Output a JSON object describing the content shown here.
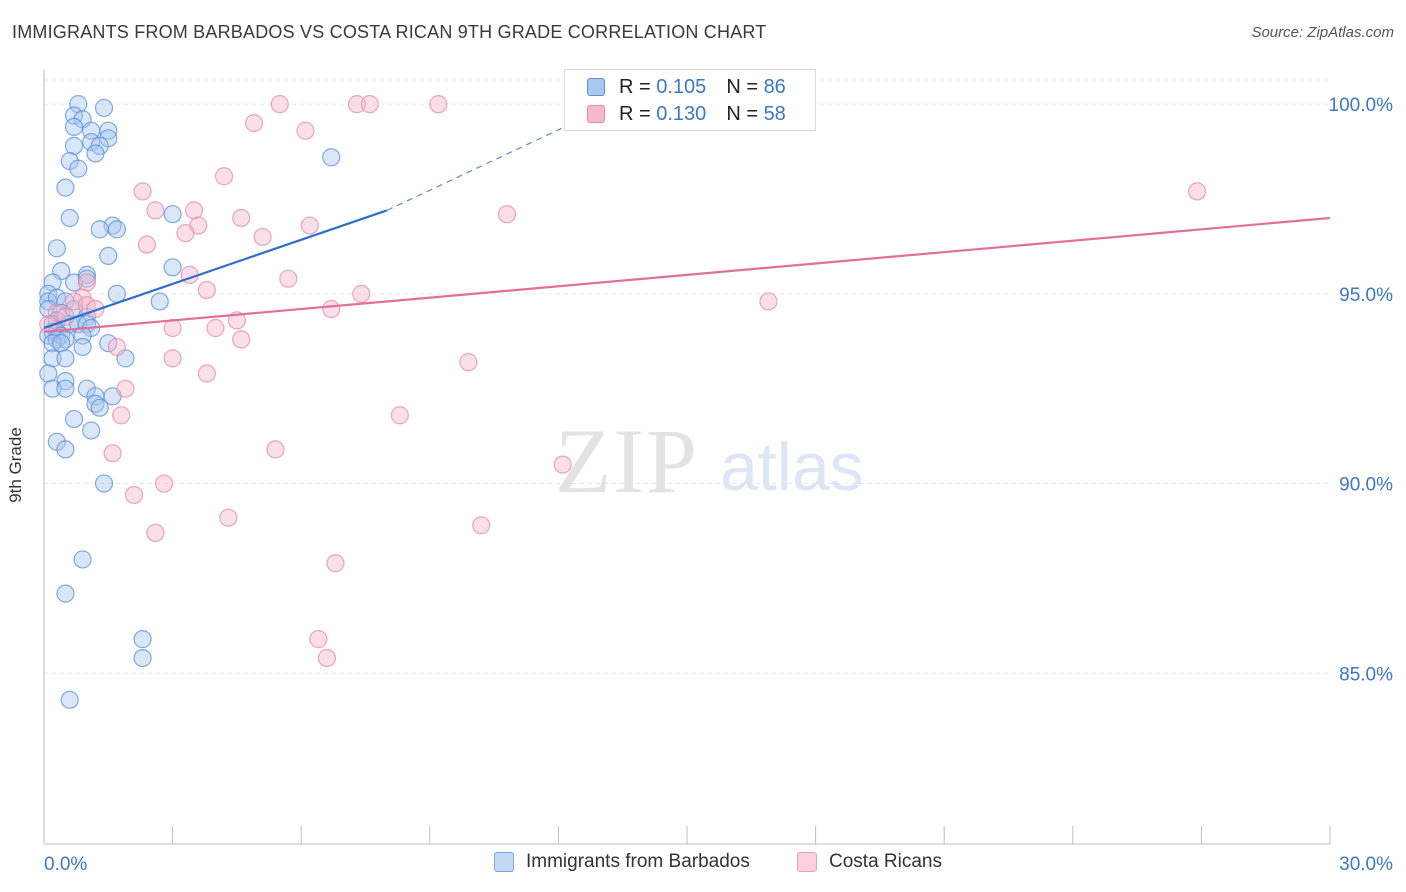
{
  "title": "IMMIGRANTS FROM BARBADOS VS COSTA RICAN 9TH GRADE CORRELATION CHART",
  "source": "Source: ZipAtlas.com",
  "watermark": {
    "zip": "ZIP",
    "atlas": "atlas"
  },
  "legend": {
    "r_label": "R =",
    "n_label": "N =",
    "series": [
      {
        "r": "0.105",
        "n": "86"
      },
      {
        "r": "0.130",
        "n": "58"
      }
    ]
  },
  "colors": {
    "blue_fill": "#a8c8f0",
    "blue_stroke": "#5b8fd6",
    "blue_line": "#2f6fcb",
    "pink_fill": "#f5b9cc",
    "pink_stroke": "#e58aa8",
    "pink_line": "#e0709a",
    "tick_text": "#3a78c9",
    "grid": "#e6e6e6"
  },
  "chart_data": {
    "type": "scatter",
    "title": "IMMIGRANTS FROM BARBADOS VS COSTA RICAN 9TH GRADE CORRELATION CHART",
    "xlabel": "",
    "ylabel": "9th Grade",
    "xlim": [
      0,
      30
    ],
    "ylim": [
      80.5,
      100.9
    ],
    "x_tick_labels": [
      {
        "value": 0,
        "label": "0.0%"
      },
      {
        "value": 30,
        "label": "30.0%"
      }
    ],
    "y_tick_labels": [
      {
        "value": 100,
        "label": "100.0%"
      },
      {
        "value": 95,
        "label": "95.0%"
      },
      {
        "value": 90,
        "label": "90.0%"
      },
      {
        "value": 85,
        "label": "85.0%"
      }
    ],
    "series": [
      {
        "name": "Immigrants from Barbados",
        "r": 0.105,
        "n": 86,
        "trend": {
          "x0": 0.0,
          "y0": 94.1,
          "x1": 8.0,
          "y1": 97.2,
          "dash_to_x": 12.9,
          "dash_to_y": 99.8
        },
        "points": [
          [
            0.8,
            100.0
          ],
          [
            1.4,
            99.9
          ],
          [
            0.7,
            99.7
          ],
          [
            0.9,
            99.6
          ],
          [
            0.7,
            99.4
          ],
          [
            1.1,
            99.3
          ],
          [
            1.5,
            99.3
          ],
          [
            1.5,
            99.1
          ],
          [
            1.1,
            99.0
          ],
          [
            1.3,
            98.9
          ],
          [
            0.7,
            98.9
          ],
          [
            1.2,
            98.7
          ],
          [
            0.6,
            98.5
          ],
          [
            0.8,
            98.3
          ],
          [
            6.7,
            98.6
          ],
          [
            0.5,
            97.8
          ],
          [
            0.6,
            97.0
          ],
          [
            3.0,
            97.1
          ],
          [
            1.6,
            96.8
          ],
          [
            1.7,
            96.7
          ],
          [
            1.3,
            96.7
          ],
          [
            0.3,
            96.2
          ],
          [
            1.5,
            96.0
          ],
          [
            0.4,
            95.6
          ],
          [
            1.0,
            95.5
          ],
          [
            3.0,
            95.7
          ],
          [
            0.2,
            95.3
          ],
          [
            0.7,
            95.3
          ],
          [
            1.0,
            95.4
          ],
          [
            1.7,
            95.0
          ],
          [
            0.1,
            95.0
          ],
          [
            0.1,
            94.8
          ],
          [
            0.3,
            94.9
          ],
          [
            0.5,
            94.8
          ],
          [
            0.1,
            94.6
          ],
          [
            0.4,
            94.5
          ],
          [
            0.7,
            94.6
          ],
          [
            1.0,
            94.4
          ],
          [
            2.7,
            94.8
          ],
          [
            0.3,
            94.3
          ],
          [
            0.6,
            94.2
          ],
          [
            0.2,
            94.2
          ],
          [
            0.8,
            94.2
          ],
          [
            1.0,
            94.2
          ],
          [
            1.1,
            94.1
          ],
          [
            0.2,
            94.0
          ],
          [
            0.3,
            94.0
          ],
          [
            0.1,
            93.9
          ],
          [
            0.4,
            93.9
          ],
          [
            0.9,
            93.9
          ],
          [
            0.3,
            93.8
          ],
          [
            0.5,
            93.8
          ],
          [
            0.2,
            93.7
          ],
          [
            0.4,
            93.7
          ],
          [
            0.9,
            93.6
          ],
          [
            1.5,
            93.7
          ],
          [
            0.2,
            93.3
          ],
          [
            0.5,
            93.3
          ],
          [
            1.9,
            93.3
          ],
          [
            0.1,
            92.9
          ],
          [
            0.5,
            92.7
          ],
          [
            0.2,
            92.5
          ],
          [
            0.5,
            92.5
          ],
          [
            1.0,
            92.5
          ],
          [
            1.2,
            92.3
          ],
          [
            1.6,
            92.3
          ],
          [
            1.2,
            92.1
          ],
          [
            1.3,
            92.0
          ],
          [
            0.7,
            91.7
          ],
          [
            1.1,
            91.4
          ],
          [
            0.3,
            91.1
          ],
          [
            0.5,
            90.9
          ],
          [
            1.4,
            90.0
          ],
          [
            0.9,
            88.0
          ],
          [
            0.5,
            87.1
          ],
          [
            2.3,
            85.9
          ],
          [
            2.3,
            85.4
          ],
          [
            0.6,
            84.3
          ]
        ]
      },
      {
        "name": "Costa Ricans",
        "r": 0.13,
        "n": 58,
        "trend": {
          "x0": 0.0,
          "y0": 94.0,
          "x1": 30.0,
          "y1": 97.0
        },
        "points": [
          [
            5.5,
            100.0
          ],
          [
            7.3,
            100.0
          ],
          [
            7.6,
            100.0
          ],
          [
            9.2,
            100.0
          ],
          [
            4.9,
            99.5
          ],
          [
            6.1,
            99.3
          ],
          [
            4.2,
            98.1
          ],
          [
            2.3,
            97.7
          ],
          [
            2.6,
            97.2
          ],
          [
            3.5,
            97.2
          ],
          [
            10.8,
            97.1
          ],
          [
            4.6,
            97.0
          ],
          [
            6.2,
            96.8
          ],
          [
            3.6,
            96.8
          ],
          [
            3.3,
            96.6
          ],
          [
            5.1,
            96.5
          ],
          [
            2.4,
            96.3
          ],
          [
            3.4,
            95.5
          ],
          [
            5.7,
            95.4
          ],
          [
            1.0,
            95.3
          ],
          [
            3.8,
            95.1
          ],
          [
            7.4,
            95.0
          ],
          [
            0.9,
            94.9
          ],
          [
            0.7,
            94.8
          ],
          [
            16.9,
            94.8
          ],
          [
            1.0,
            94.7
          ],
          [
            1.2,
            94.6
          ],
          [
            6.7,
            94.6
          ],
          [
            0.3,
            94.5
          ],
          [
            0.5,
            94.4
          ],
          [
            4.5,
            94.3
          ],
          [
            0.1,
            94.2
          ],
          [
            4.0,
            94.1
          ],
          [
            3.0,
            94.1
          ],
          [
            4.6,
            93.8
          ],
          [
            1.7,
            93.6
          ],
          [
            3.0,
            93.3
          ],
          [
            9.9,
            93.2
          ],
          [
            3.8,
            92.9
          ],
          [
            1.9,
            92.5
          ],
          [
            8.3,
            91.8
          ],
          [
            1.8,
            91.8
          ],
          [
            5.4,
            90.9
          ],
          [
            1.6,
            90.8
          ],
          [
            12.1,
            90.5
          ],
          [
            2.8,
            90.0
          ],
          [
            2.1,
            89.7
          ],
          [
            4.3,
            89.1
          ],
          [
            10.2,
            88.9
          ],
          [
            2.6,
            88.7
          ],
          [
            6.8,
            87.9
          ],
          [
            6.4,
            85.9
          ],
          [
            6.6,
            85.4
          ],
          [
            26.9,
            97.7
          ]
        ]
      }
    ]
  }
}
